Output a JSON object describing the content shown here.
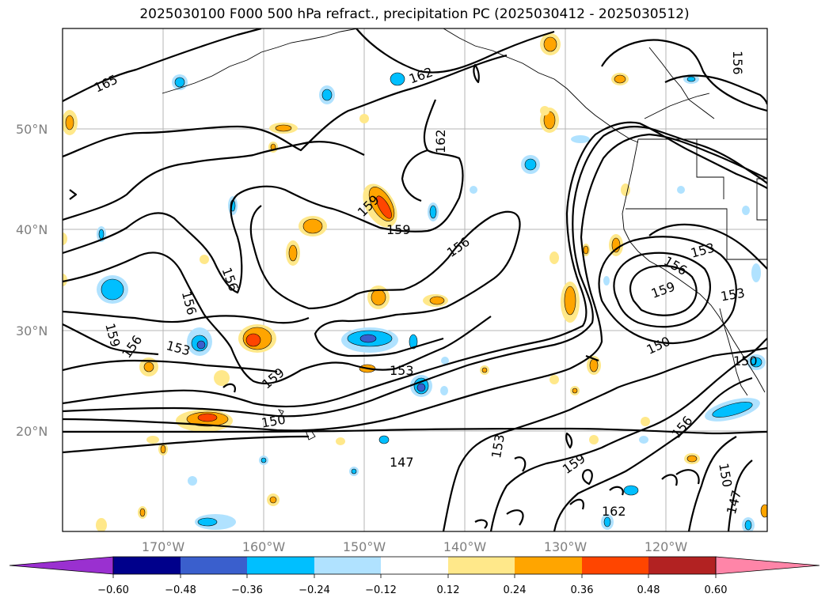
{
  "title": "2025030100 F000 500 hPa refract., precipitation PC (2025030412 - 2025030512)",
  "lat_labels": [
    "50°N",
    "40°N",
    "30°N",
    "20°N"
  ],
  "lon_labels": [
    "170°W",
    "160°W",
    "150°W",
    "140°W",
    "130°W",
    "120°W"
  ],
  "contour_labels": [
    "165",
    "162",
    "162",
    "156",
    "159",
    "159",
    "156",
    "156",
    "156",
    "159",
    "156",
    "153",
    "159",
    "156",
    "153",
    "153",
    "159",
    "150",
    "153",
    "150",
    "156",
    "159",
    "147",
    "153",
    "150",
    "162",
    "147",
    "150",
    "156"
  ],
  "colorbar": {
    "ticks": [
      "−0.60",
      "−0.48",
      "−0.36",
      "−0.24",
      "−0.12",
      "0.12",
      "0.24",
      "0.36",
      "0.48",
      "0.60"
    ],
    "colors": [
      "#9a30d0",
      "#00008b",
      "#3a5fcd",
      "#00bfff",
      "#b0e2ff",
      "#ffffff",
      "#ffe88a",
      "#ffa500",
      "#ff4500",
      "#b22222",
      "#ff85a8"
    ]
  }
}
